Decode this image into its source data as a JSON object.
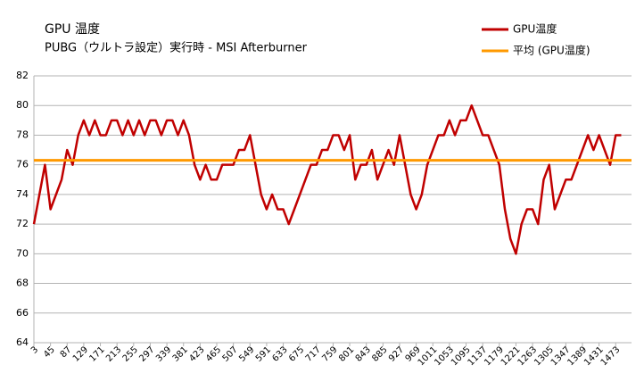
{
  "chart_data": {
    "type": "line",
    "title": "GPU 温度",
    "subtitle": "PUBG（ウルトラ設定）実行時 - MSI Afterburner",
    "x": [
      3,
      17,
      31,
      45,
      59,
      73,
      87,
      101,
      115,
      129,
      143,
      157,
      171,
      185,
      199,
      213,
      227,
      241,
      255,
      269,
      283,
      297,
      311,
      325,
      339,
      353,
      367,
      381,
      395,
      409,
      423,
      437,
      451,
      465,
      479,
      493,
      507,
      521,
      535,
      549,
      563,
      577,
      591,
      605,
      619,
      633,
      647,
      661,
      675,
      689,
      703,
      717,
      731,
      745,
      759,
      773,
      787,
      801,
      815,
      829,
      843,
      857,
      871,
      885,
      899,
      913,
      927,
      941,
      955,
      969,
      983,
      997,
      1011,
      1025,
      1039,
      1053,
      1067,
      1081,
      1095,
      1109,
      1123,
      1137,
      1151,
      1165,
      1179,
      1193,
      1207,
      1221,
      1235,
      1249,
      1263,
      1277,
      1291,
      1305,
      1319,
      1333,
      1347,
      1361,
      1375,
      1389,
      1403,
      1417,
      1431,
      1445,
      1459,
      1473,
      1487
    ],
    "series": [
      {
        "name": "GPU温度",
        "color": "#c00000",
        "values": [
          72,
          74,
          76,
          73,
          74,
          75,
          77,
          76,
          78,
          79,
          78,
          79,
          78,
          78,
          79,
          79,
          78,
          79,
          78,
          79,
          78,
          79,
          79,
          78,
          79,
          79,
          78,
          79,
          78,
          76,
          75,
          76,
          75,
          75,
          76,
          76,
          76,
          77,
          77,
          78,
          76,
          74,
          73,
          74,
          73,
          73,
          72,
          73,
          74,
          75,
          76,
          76,
          77,
          77,
          78,
          78,
          77,
          78,
          75,
          76,
          76,
          77,
          75,
          76,
          77,
          76,
          78,
          76,
          74,
          73,
          74,
          76,
          77,
          78,
          78,
          79,
          78,
          79,
          79,
          80,
          79,
          78,
          78,
          77,
          76,
          73,
          71,
          70,
          72,
          73,
          73,
          72,
          75,
          76,
          73,
          74,
          75,
          75,
          76,
          77,
          78,
          77,
          78,
          77,
          76,
          78,
          78
        ]
      },
      {
        "name": "平均 (GPU温度)",
        "color": "#ff9900",
        "value": 76.3
      }
    ],
    "xlim": [
      3,
      1513
    ],
    "xticks": [
      3,
      45,
      87,
      129,
      171,
      213,
      255,
      297,
      339,
      381,
      423,
      465,
      507,
      549,
      591,
      633,
      675,
      717,
      759,
      801,
      843,
      885,
      927,
      969,
      1011,
      1053,
      1095,
      1137,
      1179,
      1221,
      1263,
      1305,
      1347,
      1389,
      1431,
      1473
    ],
    "ylim": [
      64,
      82
    ],
    "yticks": [
      64,
      66,
      68,
      70,
      72,
      74,
      76,
      78,
      80,
      82
    ],
    "grid": true
  }
}
